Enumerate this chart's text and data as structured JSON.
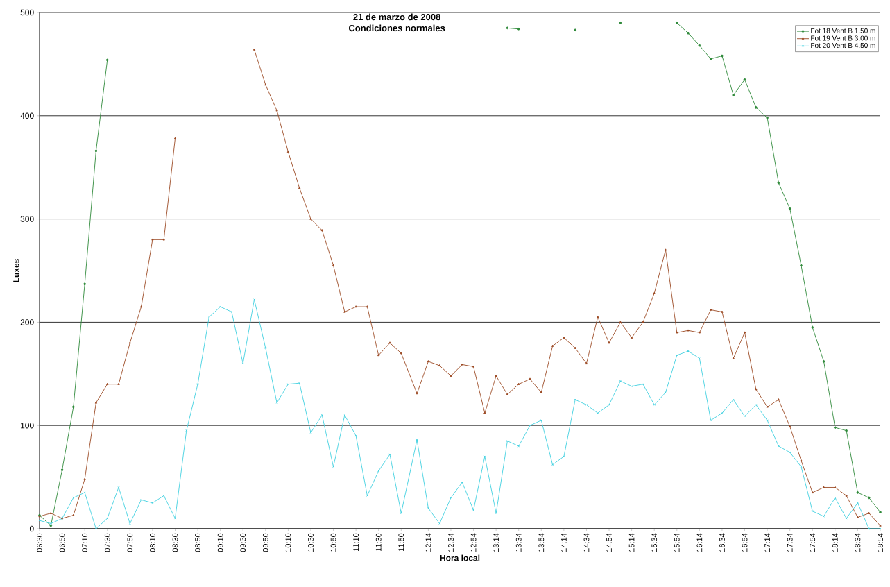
{
  "chart_data": {
    "type": "line",
    "title": "21 de marzo de 2008",
    "subtitle": "Condiciones normales",
    "xlabel": "Hora local",
    "ylabel": "Luxes",
    "x": [
      6.5,
      6.6667,
      6.8333,
      7,
      7.1667,
      7.3333,
      7.5,
      7.6667,
      7.8333,
      8,
      8.1667,
      8.3333,
      8.5,
      8.6667,
      8.8333,
      9,
      9.1667,
      9.3333,
      9.5,
      9.6667,
      9.8333,
      10,
      10.1667,
      10.3333,
      10.5,
      10.6667,
      10.8333,
      11,
      11.1667,
      11.3333,
      11.5,
      11.6667,
      11.8333,
      12.0667,
      12.2333,
      12.4,
      12.5667,
      12.7333,
      12.9,
      13.0667,
      13.2333,
      13.4,
      13.5667,
      13.7333,
      13.9,
      14.0667,
      14.2333,
      14.4,
      14.5667,
      14.7333,
      14.9,
      15.0667,
      15.2333,
      15.4,
      15.5667,
      15.7333,
      15.9,
      16.0667,
      16.2333,
      16.4,
      16.5667,
      16.7333,
      16.9,
      17.0667,
      17.2333,
      17.4,
      17.5667,
      17.7333,
      17.9,
      18.0667,
      18.2333,
      18.4,
      18.5667,
      18.7333,
      18.9
    ],
    "series": [
      {
        "name": "Fot 18 Vent B 1.50 m",
        "color": "#2f8a3a",
        "marker": "circle",
        "values": [
          13,
          3,
          57,
          118,
          237,
          366,
          454,
          null,
          null,
          null,
          null,
          null,
          null,
          null,
          null,
          null,
          null,
          null,
          null,
          null,
          null,
          null,
          null,
          null,
          null,
          null,
          null,
          null,
          null,
          null,
          null,
          null,
          null,
          null,
          null,
          null,
          null,
          null,
          null,
          null,
          null,
          485,
          484,
          null,
          null,
          null,
          null,
          483,
          null,
          null,
          null,
          490,
          null,
          null,
          null,
          null,
          490,
          480,
          468,
          455,
          458,
          420,
          435,
          408,
          398,
          335,
          310,
          255,
          195,
          162,
          98,
          95,
          35,
          30,
          16
        ]
      },
      {
        "name": "Fot 19 Vent B 3.00 m",
        "color": "#9c4a24",
        "marker": "triangle",
        "values": [
          12,
          15,
          10,
          13,
          48,
          122,
          140,
          140,
          180,
          215,
          280,
          280,
          378,
          null,
          null,
          null,
          null,
          null,
          null,
          464,
          430,
          405,
          365,
          330,
          300,
          289,
          255,
          210,
          215,
          215,
          168,
          180,
          170,
          131,
          162,
          158,
          148,
          159,
          157,
          112,
          148,
          130,
          140,
          145,
          132,
          177,
          185,
          175,
          160,
          205,
          180,
          200,
          185,
          200,
          228,
          270,
          190,
          192,
          190,
          212,
          210,
          165,
          190,
          135,
          118,
          125,
          99,
          66,
          35,
          40,
          40,
          32,
          11,
          15,
          3
        ]
      },
      {
        "name": "Fot 20 Vent B 4.50 m",
        "color": "#40d0e0",
        "marker": "cross",
        "values": [
          8,
          5,
          10,
          30,
          35,
          0,
          10,
          40,
          5,
          28,
          25,
          32,
          10,
          95,
          140,
          205,
          215,
          210,
          160,
          222,
          175,
          122,
          140,
          141,
          93,
          110,
          60,
          110,
          90,
          32,
          56,
          72,
          15,
          86,
          20,
          5,
          30,
          45,
          18,
          70,
          15,
          85,
          80,
          100,
          105,
          62,
          70,
          125,
          120,
          112,
          120,
          143,
          138,
          140,
          120,
          132,
          168,
          172,
          165,
          105,
          112,
          125,
          109,
          120,
          105,
          80,
          74,
          60,
          17,
          12,
          30,
          10,
          25,
          0,
          0
        ]
      }
    ],
    "xlim": [
      6.5,
      18.9
    ],
    "xticks": [
      {
        "value": 6.5,
        "label": "06:30"
      },
      {
        "value": 6.8333,
        "label": "06:50"
      },
      {
        "value": 7.1667,
        "label": "07:10"
      },
      {
        "value": 7.5,
        "label": "07:30"
      },
      {
        "value": 7.8333,
        "label": "07:50"
      },
      {
        "value": 8.1667,
        "label": "08:10"
      },
      {
        "value": 8.5,
        "label": "08:30"
      },
      {
        "value": 8.8333,
        "label": "08:50"
      },
      {
        "value": 9.1667,
        "label": "09:10"
      },
      {
        "value": 9.5,
        "label": "09:30"
      },
      {
        "value": 9.8333,
        "label": "09:50"
      },
      {
        "value": 10.1667,
        "label": "10:10"
      },
      {
        "value": 10.5,
        "label": "10:30"
      },
      {
        "value": 10.8333,
        "label": "10:50"
      },
      {
        "value": 11.1667,
        "label": "11:10"
      },
      {
        "value": 11.5,
        "label": "11:30"
      },
      {
        "value": 11.8333,
        "label": "11:50"
      },
      {
        "value": 12.2333,
        "label": "12:14"
      },
      {
        "value": 12.5667,
        "label": "12:34"
      },
      {
        "value": 12.9,
        "label": "12:54"
      },
      {
        "value": 13.2333,
        "label": "13:14"
      },
      {
        "value": 13.5667,
        "label": "13:34"
      },
      {
        "value": 13.9,
        "label": "13:54"
      },
      {
        "value": 14.2333,
        "label": "14:14"
      },
      {
        "value": 14.5667,
        "label": "14:34"
      },
      {
        "value": 14.9,
        "label": "14:54"
      },
      {
        "value": 15.2333,
        "label": "15:14"
      },
      {
        "value": 15.5667,
        "label": "15:34"
      },
      {
        "value": 15.9,
        "label": "15:54"
      },
      {
        "value": 16.2333,
        "label": "16:14"
      },
      {
        "value": 16.5667,
        "label": "16:34"
      },
      {
        "value": 16.9,
        "label": "16:54"
      },
      {
        "value": 17.2333,
        "label": "17:14"
      },
      {
        "value": 17.5667,
        "label": "17:34"
      },
      {
        "value": 17.9,
        "label": "17:54"
      },
      {
        "value": 18.2333,
        "label": "18:14"
      },
      {
        "value": 18.5667,
        "label": "18:34"
      },
      {
        "value": 18.9,
        "label": "18:54"
      }
    ],
    "ylim": [
      0,
      500
    ],
    "yticks": [
      0,
      100,
      200,
      300,
      400,
      500
    ],
    "grid": "y",
    "legend": "top right",
    "line_style": "solid"
  }
}
